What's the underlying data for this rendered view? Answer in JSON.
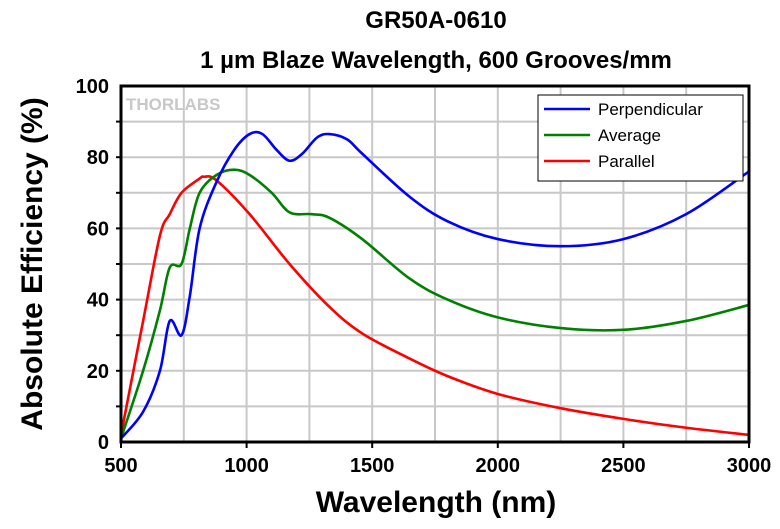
{
  "chart_data": {
    "type": "line",
    "title": "GR50A-0610",
    "subtitle": "1 µm Blaze Wavelength, 600 Grooves/mm",
    "xlabel": "Wavelength (nm)",
    "ylabel": "Absolute Efficiency (%)",
    "xlim": [
      500,
      3000
    ],
    "ylim": [
      0,
      100
    ],
    "xticks": [
      500,
      1000,
      1500,
      2000,
      2500,
      3000
    ],
    "yticks": [
      0,
      20,
      40,
      60,
      80,
      100
    ],
    "grid": true,
    "legend_position": "top-right",
    "watermark": "THORLABS",
    "series": [
      {
        "name": "Perpendicular",
        "color": "#0000ff",
        "x": [
          500,
          588,
          655,
          694,
          741,
          774,
          813,
          880,
          950,
          1012,
          1063,
          1120,
          1171,
          1222,
          1280,
          1329,
          1400,
          1460,
          1647,
          1800,
          2000,
          2250,
          2500,
          2750,
          3000
        ],
        "y": [
          1,
          8.5,
          20,
          34,
          30,
          41,
          60,
          73,
          82,
          86.5,
          86.5,
          82,
          79,
          81,
          85.5,
          86.5,
          85,
          81,
          69,
          62,
          57,
          55,
          57,
          64,
          76
        ]
      },
      {
        "name": "Average",
        "color": "#008000",
        "x": [
          500,
          588,
          655,
          694,
          741,
          774,
          813,
          880,
          950,
          1012,
          1100,
          1171,
          1260,
          1329,
          1460,
          1647,
          1800,
          2000,
          2250,
          2500,
          2750,
          3000
        ],
        "y": [
          1,
          20,
          37,
          49,
          50,
          60,
          70,
          75,
          76.5,
          75,
          70,
          64.5,
          64,
          63,
          57,
          46,
          40,
          35,
          32,
          31.5,
          34,
          38.5
        ]
      },
      {
        "name": "Parallel",
        "color": "#ff0000",
        "x": [
          500,
          588,
          655,
          694,
          741,
          813,
          830,
          880,
          1012,
          1171,
          1329,
          1460,
          1647,
          1800,
          2000,
          2250,
          2500,
          2750,
          3000
        ],
        "y": [
          2,
          34,
          58,
          64,
          70,
          74,
          74.5,
          73.5,
          64,
          50,
          38,
          30.5,
          23.5,
          18.5,
          13.5,
          9.5,
          6.5,
          4,
          2
        ]
      }
    ]
  }
}
